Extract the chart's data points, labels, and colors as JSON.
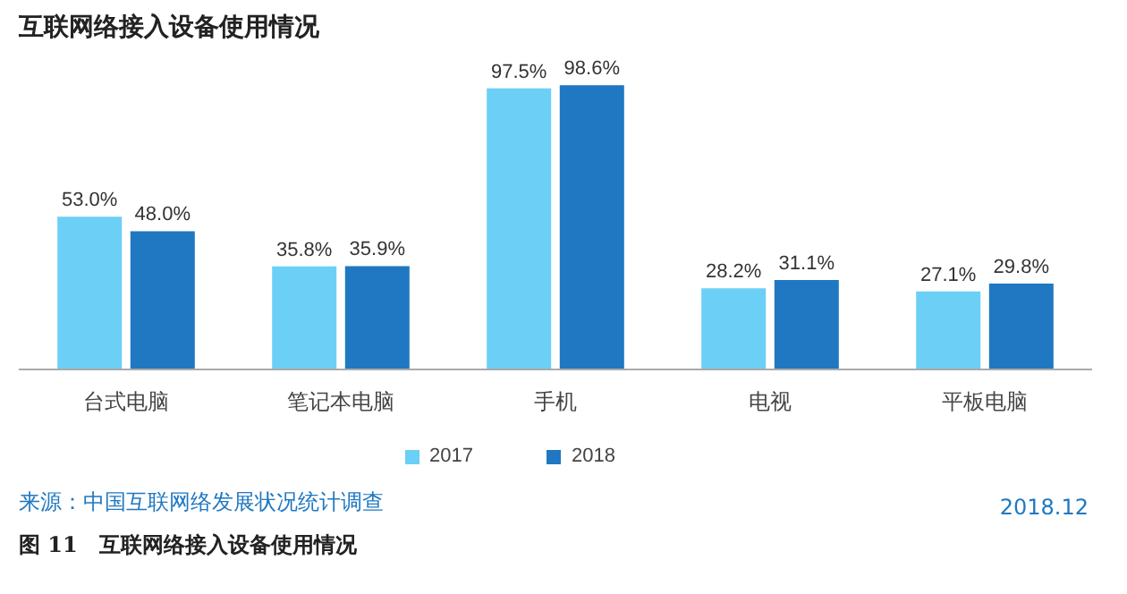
{
  "chart_data": {
    "type": "bar",
    "title": "互联网络接入设备使用情况",
    "categories": [
      "台式电脑",
      "笔记本电脑",
      "手机",
      "电视",
      "平板电脑"
    ],
    "series": [
      {
        "name": "2017",
        "color": "#6ccff6",
        "values": [
          53.0,
          35.8,
          97.5,
          28.2,
          27.1
        ],
        "value_labels": [
          "53.0%",
          "35.8%",
          "97.5%",
          "28.2%",
          "27.1%"
        ]
      },
      {
        "name": "2018",
        "color": "#1f78c1",
        "values": [
          48.0,
          35.9,
          98.6,
          31.1,
          29.8
        ],
        "value_labels": [
          "48.0%",
          "35.9%",
          "98.6%",
          "31.1%",
          "29.8%"
        ]
      }
    ],
    "grid": false,
    "legend": "bottom",
    "annotations": [
      "来源：中国互联网络发展状况统计调查",
      "2018.12",
      "图 11　互联网络接入设备使用情况"
    ]
  }
}
